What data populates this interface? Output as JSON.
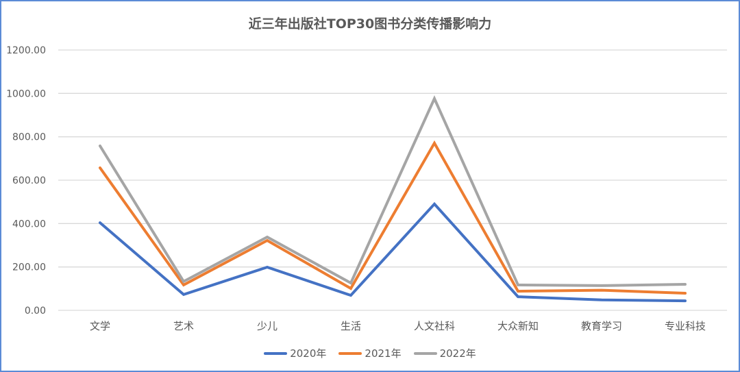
{
  "chart_data": {
    "type": "line",
    "title": "近三年出版社TOP30图书分类传播影响力",
    "xlabel": "",
    "ylabel": "",
    "categories": [
      "文学",
      "艺术",
      "少儿",
      "生活",
      "人文社科",
      "大众新知",
      "教育学习",
      "专业科技"
    ],
    "series": [
      {
        "name": "2020年",
        "color": "#4472c4",
        "values": [
          404,
          73,
          199,
          69,
          490,
          63,
          48,
          44
        ]
      },
      {
        "name": "2021年",
        "color": "#ed7d31",
        "values": [
          657,
          117,
          322,
          101,
          771,
          88,
          93,
          79
        ]
      },
      {
        "name": "2022年",
        "color": "#a5a5a5",
        "values": [
          758,
          133,
          338,
          126,
          976,
          117,
          114,
          120
        ]
      }
    ],
    "ylim": [
      0,
      1200
    ],
    "yticks": [
      "0.00",
      "200.00",
      "400.00",
      "600.00",
      "800.00",
      "1000.00",
      "1200.00"
    ],
    "grid": true,
    "legend_position": "bottom"
  }
}
